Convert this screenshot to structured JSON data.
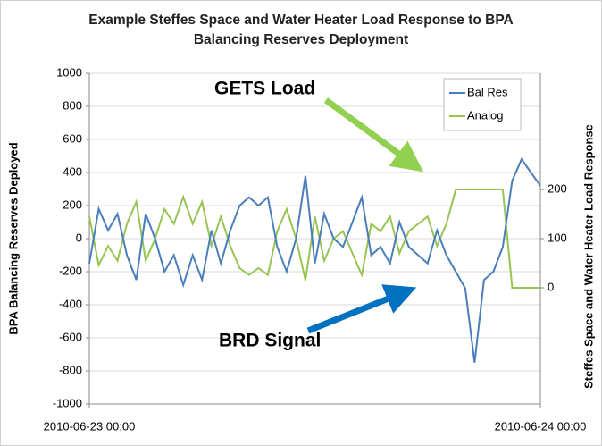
{
  "chart_data": {
    "type": "line",
    "title": "Example Steffes Space and Water Heater Load Response to BPA Balancing Reserves Deployment",
    "y_label": "BPA Balancing Reserves Deployed",
    "y2_label": "Steffes Space and Water Heater Load Response",
    "x": [
      0,
      0.5,
      1,
      1.5,
      2,
      2.5,
      3,
      3.5,
      4,
      4.5,
      5,
      5.5,
      6,
      6.5,
      7,
      7.5,
      8,
      8.5,
      9,
      9.5,
      10,
      10.5,
      11,
      11.5,
      12,
      12.5,
      13,
      13.5,
      14,
      14.5,
      15,
      15.5,
      16,
      16.5,
      17,
      17.5,
      18,
      18.5,
      19,
      19.5,
      20,
      20.5,
      21,
      21.5,
      22,
      22.5,
      23,
      23.5,
      24
    ],
    "xlim": [
      0,
      24
    ],
    "xticks": [
      {
        "value": 0,
        "label": "2010-06-23 00:00"
      },
      {
        "value": 24,
        "label": "2010-06-24 00:00"
      }
    ],
    "ylim": [
      -1000,
      1000
    ],
    "yticks": [
      -1000,
      -800,
      -600,
      -400,
      -200,
      0,
      200,
      400,
      600,
      800,
      1000
    ],
    "y2lim": [
      -236.4,
      436.4
    ],
    "y2ticks": [
      0,
      100,
      200
    ],
    "grid": true,
    "legend": "upper right",
    "series": [
      {
        "name": "Bal Res",
        "color": "#4a7ebb",
        "values": [
          -150,
          180,
          50,
          150,
          -100,
          -250,
          150,
          0,
          -200,
          -100,
          -280,
          -100,
          -250,
          50,
          -150,
          50,
          200,
          250,
          200,
          250,
          -50,
          -200,
          0,
          380,
          -150,
          150,
          0,
          -50,
          100,
          250,
          -100,
          -50,
          -150,
          100,
          -50,
          -100,
          -150,
          50,
          -100,
          -200,
          -300,
          -750,
          -250,
          -200,
          -50,
          350,
          480,
          400,
          320
        ]
      },
      {
        "name": "Analog",
        "color": "#98c454",
        "axis": "y2",
        "values": [
          145,
          46,
          85,
          55,
          130,
          175,
          55,
          100,
          160,
          130,
          185,
          130,
          175,
          85,
          145,
          85,
          40,
          26,
          40,
          26,
          115,
          160,
          100,
          15,
          145,
          55,
          100,
          115,
          70,
          26,
          130,
          115,
          145,
          70,
          115,
          130,
          145,
          85,
          130,
          200,
          200,
          200,
          200,
          200,
          200,
          0,
          0,
          0,
          0
        ]
      }
    ],
    "annotations": [
      {
        "text": "GETS Load",
        "color": "#92d050"
      },
      {
        "text": "BRD Signal",
        "color": "#0070c0"
      }
    ]
  }
}
